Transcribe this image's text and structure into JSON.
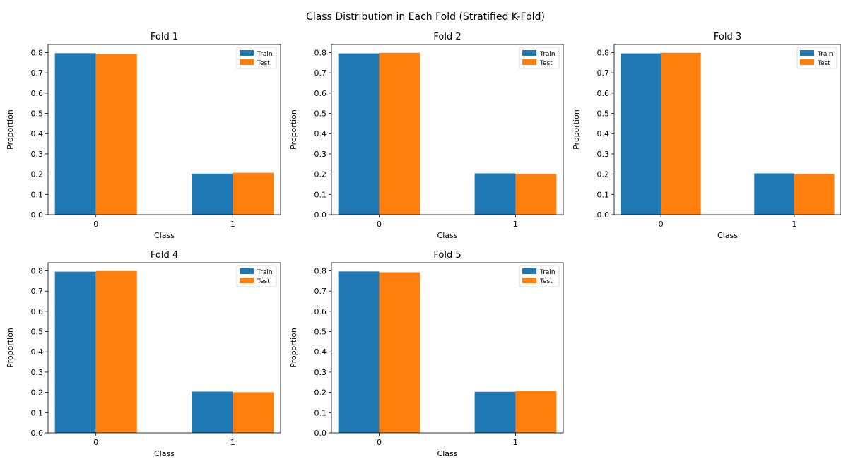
{
  "figure": {
    "suptitle": "Class Distribution in Each Fold (Stratified K-Fold)"
  },
  "colors": {
    "train": "#1f77b4",
    "test": "#ff7f0e"
  },
  "chart_data": [
    {
      "type": "bar",
      "title": "Fold 1",
      "xlabel": "Class",
      "ylabel": "Proportion",
      "categories": [
        "0",
        "1"
      ],
      "ylim": [
        0,
        0.84
      ],
      "yticks": [
        "0.0",
        "0.1",
        "0.2",
        "0.3",
        "0.4",
        "0.5",
        "0.6",
        "0.7",
        "0.8"
      ],
      "legend_position": "top-right",
      "series": [
        {
          "name": "Train",
          "values": [
            0.797,
            0.203
          ]
        },
        {
          "name": "Test",
          "values": [
            0.793,
            0.207
          ]
        }
      ]
    },
    {
      "type": "bar",
      "title": "Fold 2",
      "xlabel": "Class",
      "ylabel": "Proportion",
      "categories": [
        "0",
        "1"
      ],
      "ylim": [
        0,
        0.84
      ],
      "yticks": [
        "0.0",
        "0.1",
        "0.2",
        "0.3",
        "0.4",
        "0.5",
        "0.6",
        "0.7",
        "0.8"
      ],
      "legend_position": "top-right",
      "series": [
        {
          "name": "Train",
          "values": [
            0.796,
            0.204
          ]
        },
        {
          "name": "Test",
          "values": [
            0.799,
            0.201
          ]
        }
      ]
    },
    {
      "type": "bar",
      "title": "Fold 3",
      "xlabel": "Class",
      "ylabel": "Proportion",
      "categories": [
        "0",
        "1"
      ],
      "ylim": [
        0,
        0.84
      ],
      "yticks": [
        "0.0",
        "0.1",
        "0.2",
        "0.3",
        "0.4",
        "0.5",
        "0.6",
        "0.7",
        "0.8"
      ],
      "legend_position": "top-right",
      "series": [
        {
          "name": "Train",
          "values": [
            0.796,
            0.204
          ]
        },
        {
          "name": "Test",
          "values": [
            0.799,
            0.201
          ]
        }
      ]
    },
    {
      "type": "bar",
      "title": "Fold 4",
      "xlabel": "Class",
      "ylabel": "Proportion",
      "categories": [
        "0",
        "1"
      ],
      "ylim": [
        0,
        0.84
      ],
      "yticks": [
        "0.0",
        "0.1",
        "0.2",
        "0.3",
        "0.4",
        "0.5",
        "0.6",
        "0.7",
        "0.8"
      ],
      "legend_position": "top-right",
      "series": [
        {
          "name": "Train",
          "values": [
            0.796,
            0.204
          ]
        },
        {
          "name": "Test",
          "values": [
            0.799,
            0.201
          ]
        }
      ]
    },
    {
      "type": "bar",
      "title": "Fold 5",
      "xlabel": "Class",
      "ylabel": "Proportion",
      "categories": [
        "0",
        "1"
      ],
      "ylim": [
        0,
        0.84
      ],
      "yticks": [
        "0.0",
        "0.1",
        "0.2",
        "0.3",
        "0.4",
        "0.5",
        "0.6",
        "0.7",
        "0.8"
      ],
      "legend_position": "top-right",
      "series": [
        {
          "name": "Train",
          "values": [
            0.797,
            0.203
          ]
        },
        {
          "name": "Test",
          "values": [
            0.793,
            0.207
          ]
        }
      ]
    }
  ]
}
